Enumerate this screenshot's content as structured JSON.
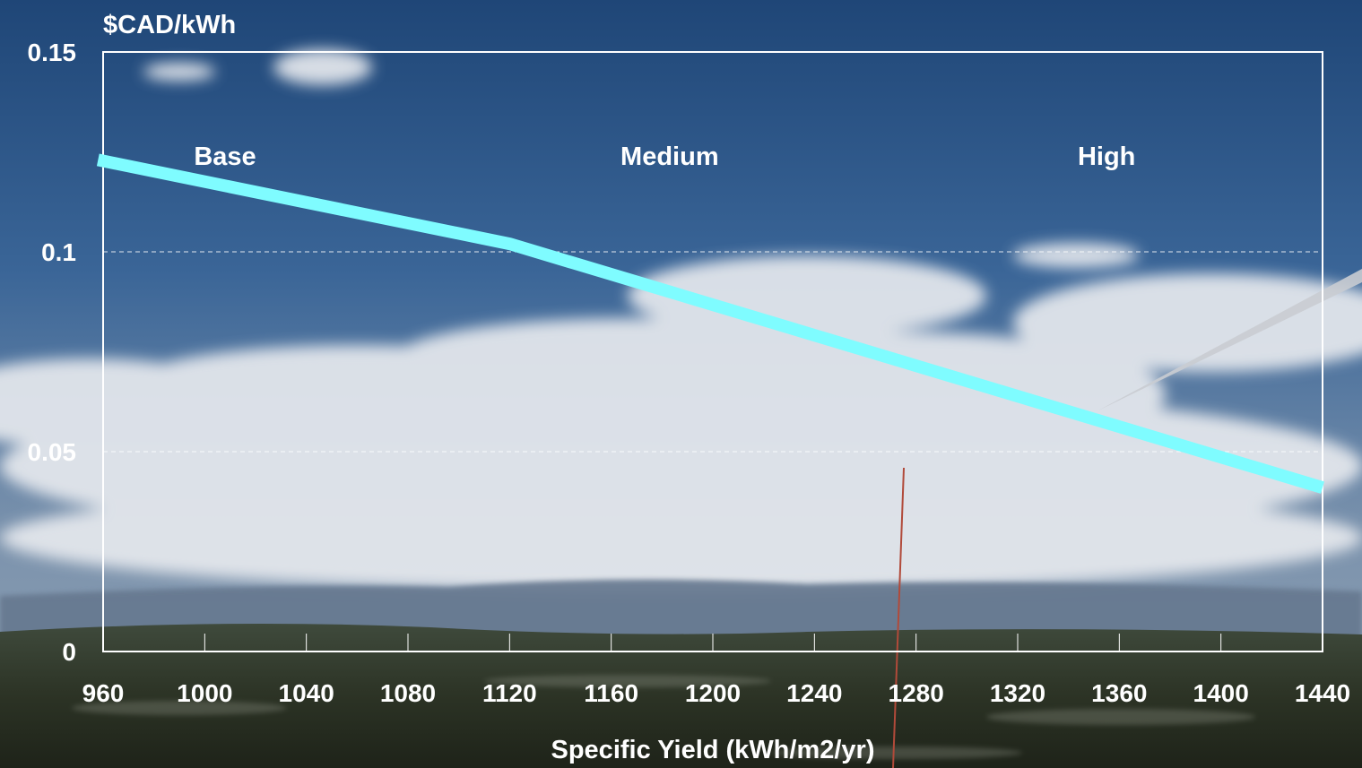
{
  "chart_data": {
    "type": "line",
    "ylabel": "$CAD/kWh",
    "xlabel": "Specific Yield (kWh/m2/yr)",
    "xlim": [
      960,
      1440
    ],
    "ylim": [
      0,
      0.15
    ],
    "x_ticks": [
      960,
      1000,
      1040,
      1080,
      1120,
      1160,
      1200,
      1240,
      1280,
      1320,
      1360,
      1400,
      1440
    ],
    "x_tick_labels": [
      "960",
      "1000",
      "1040",
      "1080",
      "1120",
      "1160",
      "1200",
      "1240",
      "1280",
      "1320",
      "1360",
      "1400",
      "1440"
    ],
    "y_ticks": [
      0,
      0.05,
      0.1,
      0.15
    ],
    "y_tick_labels": [
      "0",
      "0.05",
      "0.1",
      "0.15"
    ],
    "gridlines": [
      0.05,
      0.1
    ],
    "series": [
      {
        "color": "#7ffcff",
        "x": [
          958,
          1120,
          1440
        ],
        "y": [
          0.123,
          0.102,
          0.041
        ]
      }
    ],
    "annotations": [
      {
        "text": "Base",
        "x": 1008,
        "y": 0.124
      },
      {
        "text": "Medium",
        "x": 1183,
        "y": 0.124
      },
      {
        "text": "High",
        "x": 1355,
        "y": 0.124
      }
    ]
  }
}
